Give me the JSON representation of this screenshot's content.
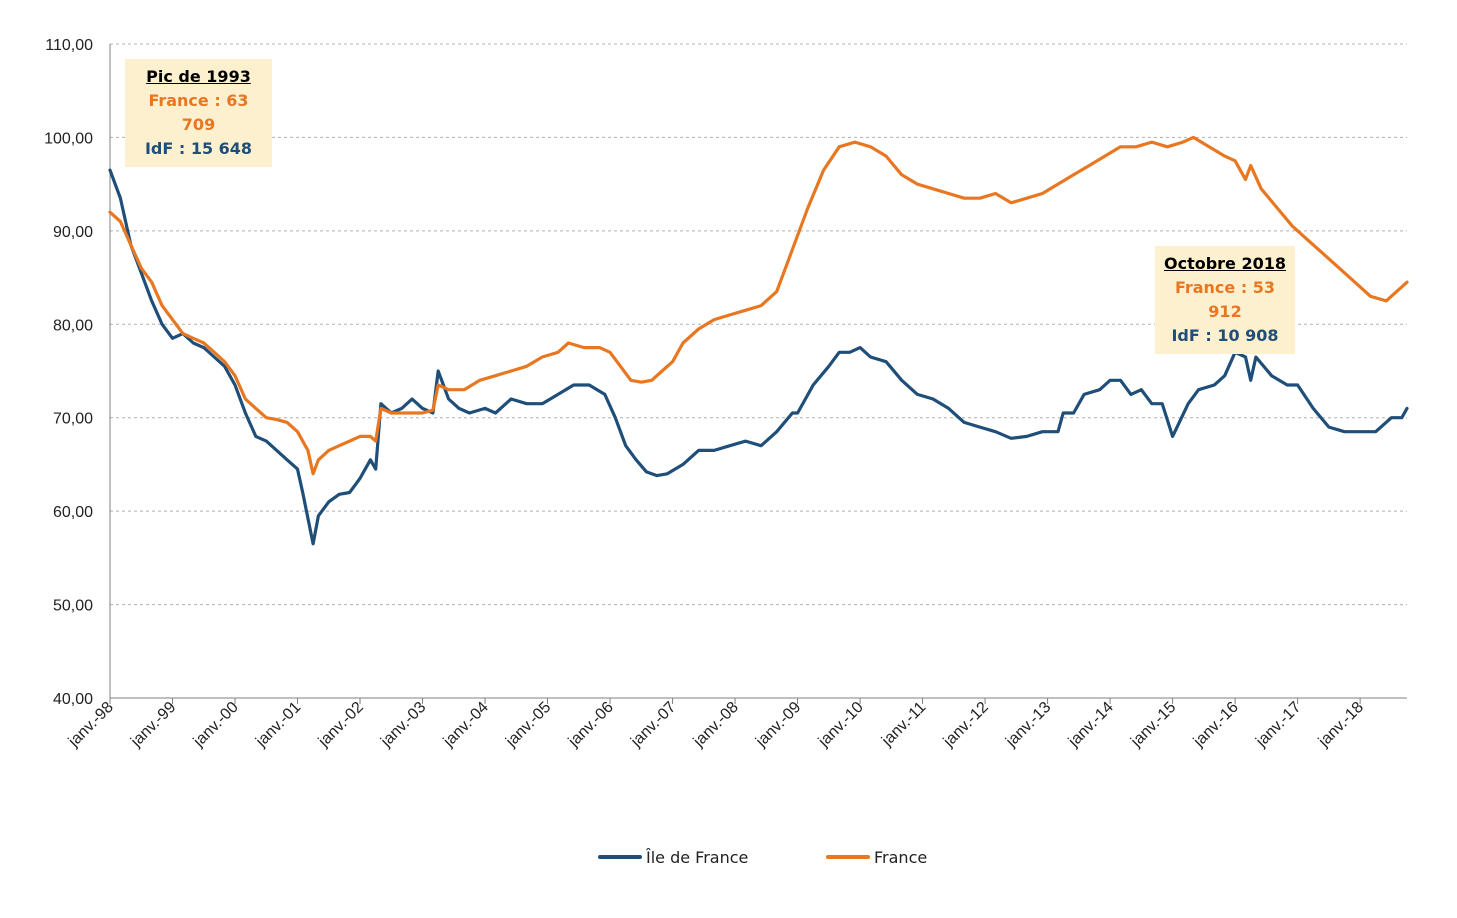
{
  "chart_data": {
    "type": "line",
    "title": "",
    "xlabel": "",
    "ylabel": "",
    "ylim": [
      40,
      110
    ],
    "y_ticks": [
      "40,00",
      "50,00",
      "60,00",
      "70,00",
      "80,00",
      "90,00",
      "100,00",
      "110,00"
    ],
    "x_ticks": [
      "janv.-98",
      "janv.-99",
      "janv.-00",
      "janv.-01",
      "janv.-02",
      "janv.-03",
      "janv.-04",
      "janv.-05",
      "janv.-06",
      "janv.-07",
      "janv.-08",
      "janv.-09",
      "janv.-10",
      "janv.-11",
      "janv.-12",
      "janv.-13",
      "janv.-14",
      "janv.-15",
      "janv.-16",
      "janv.-17",
      "janv.-18"
    ],
    "x_range": [
      "1998-01",
      "2018-10"
    ],
    "grid": "horizontal dashed",
    "legend_position": "bottom",
    "series": [
      {
        "name": "Île de France",
        "color": "#1f4e79",
        "points": [
          [
            "1998-01",
            96.5
          ],
          [
            "1998-03",
            93.5
          ],
          [
            "1998-05",
            88.5
          ],
          [
            "1998-07",
            85.5
          ],
          [
            "1998-09",
            82.5
          ],
          [
            "1998-11",
            80.0
          ],
          [
            "1999-01",
            78.5
          ],
          [
            "1999-03",
            79.0
          ],
          [
            "1999-05",
            78.0
          ],
          [
            "1999-07",
            77.5
          ],
          [
            "1999-09",
            76.5
          ],
          [
            "1999-11",
            75.5
          ],
          [
            "2000-01",
            73.5
          ],
          [
            "2000-03",
            70.5
          ],
          [
            "2000-05",
            68.0
          ],
          [
            "2000-07",
            67.5
          ],
          [
            "2000-09",
            66.5
          ],
          [
            "2000-11",
            65.5
          ],
          [
            "2001-01",
            64.5
          ],
          [
            "2001-02",
            62.0
          ],
          [
            "2001-04",
            56.5
          ],
          [
            "2001-05",
            59.5
          ],
          [
            "2001-07",
            61.0
          ],
          [
            "2001-09",
            61.8
          ],
          [
            "2001-11",
            62.0
          ],
          [
            "2002-01",
            63.5
          ],
          [
            "2002-03",
            65.5
          ],
          [
            "2002-04",
            64.5
          ],
          [
            "2002-05",
            71.5
          ],
          [
            "2002-07",
            70.5
          ],
          [
            "2002-09",
            71.0
          ],
          [
            "2002-11",
            72.0
          ],
          [
            "2003-01",
            71.0
          ],
          [
            "2003-03",
            70.5
          ],
          [
            "2003-04",
            75.0
          ],
          [
            "2003-06",
            72.0
          ],
          [
            "2003-08",
            71.0
          ],
          [
            "2003-10",
            70.5
          ],
          [
            "2004-01",
            71.0
          ],
          [
            "2004-03",
            70.5
          ],
          [
            "2004-06",
            72.0
          ],
          [
            "2004-09",
            71.5
          ],
          [
            "2004-12",
            71.5
          ],
          [
            "2005-03",
            72.5
          ],
          [
            "2005-06",
            73.5
          ],
          [
            "2005-09",
            73.5
          ],
          [
            "2005-12",
            72.5
          ],
          [
            "2006-02",
            70.0
          ],
          [
            "2006-04",
            67.0
          ],
          [
            "2006-06",
            65.5
          ],
          [
            "2006-08",
            64.2
          ],
          [
            "2006-10",
            63.8
          ],
          [
            "2006-12",
            64.0
          ],
          [
            "2007-03",
            65.0
          ],
          [
            "2007-06",
            66.5
          ],
          [
            "2007-09",
            66.5
          ],
          [
            "2007-12",
            67.0
          ],
          [
            "2008-03",
            67.5
          ],
          [
            "2008-06",
            67.0
          ],
          [
            "2008-09",
            68.5
          ],
          [
            "2008-12",
            70.5
          ],
          [
            "2009-01",
            70.5
          ],
          [
            "2009-04",
            73.5
          ],
          [
            "2009-07",
            75.5
          ],
          [
            "2009-09",
            77.0
          ],
          [
            "2009-11",
            77.0
          ],
          [
            "2010-01",
            77.5
          ],
          [
            "2010-03",
            76.5
          ],
          [
            "2010-06",
            76.0
          ],
          [
            "2010-09",
            74.0
          ],
          [
            "2010-12",
            72.5
          ],
          [
            "2011-03",
            72.0
          ],
          [
            "2011-06",
            71.0
          ],
          [
            "2011-09",
            69.5
          ],
          [
            "2011-12",
            69.0
          ],
          [
            "2012-03",
            68.5
          ],
          [
            "2012-06",
            67.8
          ],
          [
            "2012-09",
            68.0
          ],
          [
            "2012-12",
            68.5
          ],
          [
            "2013-03",
            68.5
          ],
          [
            "2013-04",
            70.5
          ],
          [
            "2013-06",
            70.5
          ],
          [
            "2013-08",
            72.5
          ],
          [
            "2013-11",
            73.0
          ],
          [
            "2014-01",
            74.0
          ],
          [
            "2014-03",
            74.0
          ],
          [
            "2014-05",
            72.5
          ],
          [
            "2014-07",
            73.0
          ],
          [
            "2014-09",
            71.5
          ],
          [
            "2014-11",
            71.5
          ],
          [
            "2015-01",
            68.0
          ],
          [
            "2015-04",
            71.5
          ],
          [
            "2015-06",
            73.0
          ],
          [
            "2015-09",
            73.5
          ],
          [
            "2015-11",
            74.5
          ],
          [
            "2016-01",
            77.0
          ],
          [
            "2016-03",
            76.5
          ],
          [
            "2016-04",
            74.0
          ],
          [
            "2016-05",
            76.5
          ],
          [
            "2016-08",
            74.5
          ],
          [
            "2016-11",
            73.5
          ],
          [
            "2017-01",
            73.5
          ],
          [
            "2017-04",
            71.0
          ],
          [
            "2017-07",
            69.0
          ],
          [
            "2017-10",
            68.5
          ],
          [
            "2018-01",
            68.5
          ],
          [
            "2018-04",
            68.5
          ],
          [
            "2018-07",
            70.0
          ],
          [
            "2018-09",
            70.0
          ],
          [
            "2018-10",
            71.0
          ]
        ]
      },
      {
        "name": "France",
        "color": "#e87722",
        "points": [
          [
            "1998-01",
            92.0
          ],
          [
            "1998-03",
            91.0
          ],
          [
            "1998-05",
            88.5
          ],
          [
            "1998-07",
            86.0
          ],
          [
            "1998-09",
            84.5
          ],
          [
            "1998-11",
            82.0
          ],
          [
            "1999-01",
            80.5
          ],
          [
            "1999-03",
            79.0
          ],
          [
            "1999-05",
            78.5
          ],
          [
            "1999-07",
            78.0
          ],
          [
            "1999-09",
            77.0
          ],
          [
            "1999-11",
            76.0
          ],
          [
            "2000-01",
            74.5
          ],
          [
            "2000-03",
            72.0
          ],
          [
            "2000-05",
            71.0
          ],
          [
            "2000-07",
            70.0
          ],
          [
            "2000-09",
            69.8
          ],
          [
            "2000-11",
            69.5
          ],
          [
            "2001-01",
            68.5
          ],
          [
            "2001-03",
            66.5
          ],
          [
            "2001-04",
            64.0
          ],
          [
            "2001-05",
            65.5
          ],
          [
            "2001-07",
            66.5
          ],
          [
            "2001-09",
            67.0
          ],
          [
            "2001-11",
            67.5
          ],
          [
            "2002-01",
            68.0
          ],
          [
            "2002-03",
            68.0
          ],
          [
            "2002-04",
            67.5
          ],
          [
            "2002-05",
            71.0
          ],
          [
            "2002-07",
            70.5
          ],
          [
            "2002-09",
            70.5
          ],
          [
            "2002-11",
            70.5
          ],
          [
            "2003-01",
            70.5
          ],
          [
            "2003-03",
            70.8
          ],
          [
            "2003-04",
            73.5
          ],
          [
            "2003-06",
            73.0
          ],
          [
            "2003-09",
            73.0
          ],
          [
            "2003-12",
            74.0
          ],
          [
            "2004-03",
            74.5
          ],
          [
            "2004-06",
            75.0
          ],
          [
            "2004-09",
            75.5
          ],
          [
            "2004-12",
            76.5
          ],
          [
            "2005-03",
            77.0
          ],
          [
            "2005-05",
            78.0
          ],
          [
            "2005-08",
            77.5
          ],
          [
            "2005-11",
            77.5
          ],
          [
            "2006-01",
            77.0
          ],
          [
            "2006-03",
            75.5
          ],
          [
            "2006-05",
            74.0
          ],
          [
            "2006-07",
            73.8
          ],
          [
            "2006-09",
            74.0
          ],
          [
            "2006-11",
            75.0
          ],
          [
            "2007-01",
            76.0
          ],
          [
            "2007-03",
            78.0
          ],
          [
            "2007-06",
            79.5
          ],
          [
            "2007-09",
            80.5
          ],
          [
            "2007-12",
            81.0
          ],
          [
            "2008-03",
            81.5
          ],
          [
            "2008-06",
            82.0
          ],
          [
            "2008-09",
            83.5
          ],
          [
            "2008-12",
            88.0
          ],
          [
            "2009-01",
            89.5
          ],
          [
            "2009-03",
            92.5
          ],
          [
            "2009-06",
            96.5
          ],
          [
            "2009-09",
            99.0
          ],
          [
            "2009-12",
            99.5
          ],
          [
            "2010-03",
            99.0
          ],
          [
            "2010-06",
            98.0
          ],
          [
            "2010-09",
            96.0
          ],
          [
            "2010-12",
            95.0
          ],
          [
            "2011-03",
            94.5
          ],
          [
            "2011-06",
            94.0
          ],
          [
            "2011-09",
            93.5
          ],
          [
            "2011-12",
            93.5
          ],
          [
            "2012-03",
            94.0
          ],
          [
            "2012-06",
            93.0
          ],
          [
            "2012-09",
            93.5
          ],
          [
            "2012-12",
            94.0
          ],
          [
            "2013-03",
            95.0
          ],
          [
            "2013-06",
            96.0
          ],
          [
            "2013-09",
            97.0
          ],
          [
            "2013-12",
            98.0
          ],
          [
            "2014-03",
            99.0
          ],
          [
            "2014-06",
            99.0
          ],
          [
            "2014-09",
            99.5
          ],
          [
            "2014-12",
            99.0
          ],
          [
            "2015-03",
            99.5
          ],
          [
            "2015-05",
            100.0
          ],
          [
            "2015-08",
            99.0
          ],
          [
            "2015-11",
            98.0
          ],
          [
            "2016-01",
            97.5
          ],
          [
            "2016-03",
            95.5
          ],
          [
            "2016-04",
            97.0
          ],
          [
            "2016-06",
            94.5
          ],
          [
            "2016-09",
            92.5
          ],
          [
            "2016-12",
            90.5
          ],
          [
            "2017-03",
            89.0
          ],
          [
            "2017-06",
            87.5
          ],
          [
            "2017-09",
            86.0
          ],
          [
            "2017-12",
            84.5
          ],
          [
            "2018-03",
            83.0
          ],
          [
            "2018-06",
            82.5
          ],
          [
            "2018-08",
            83.5
          ],
          [
            "2018-10",
            84.5
          ]
        ]
      }
    ],
    "annotations": [
      {
        "title": "Pic de 1993",
        "france_text": "France : 63 709",
        "idf_text": "IdF : 15 648"
      },
      {
        "title": "Octobre 2018",
        "france_text": "France : 53 912",
        "idf_text": "IdF : 10 908"
      }
    ]
  }
}
